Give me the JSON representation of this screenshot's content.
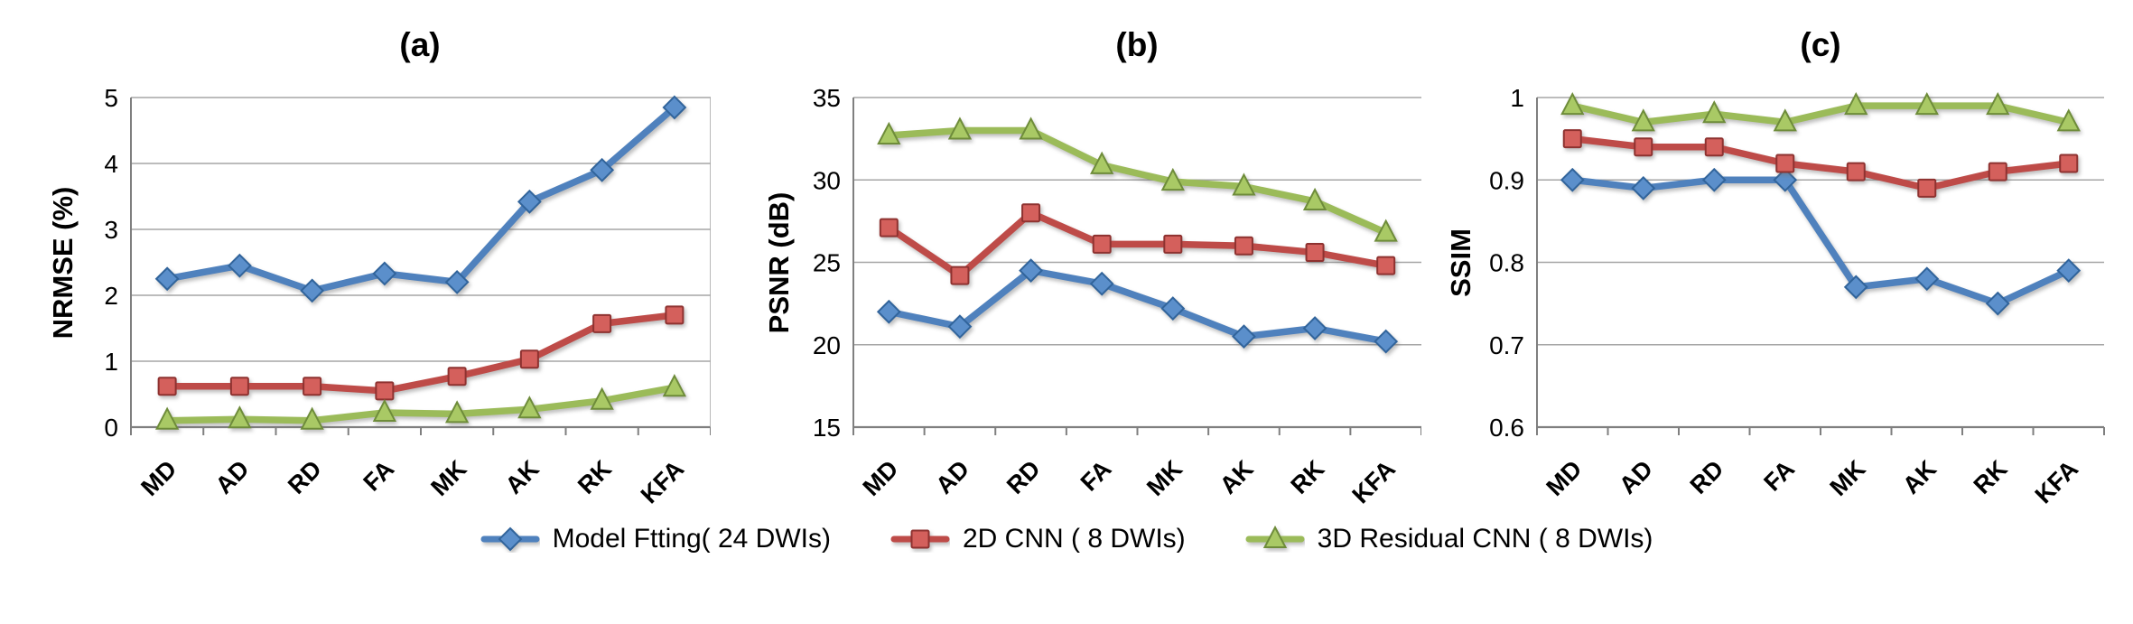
{
  "legend": {
    "items": [
      {
        "label": "Model Ftting( 24 DWIs)",
        "marker": "diamond"
      },
      {
        "label": "2D CNN ( 8 DWIs)",
        "marker": "square"
      },
      {
        "label": "3D Residual CNN ( 8 DWIs)",
        "marker": "triangle"
      }
    ]
  },
  "chart_data": [
    {
      "type": "line",
      "title": "(a)",
      "ylabel": "NRMSE (%)",
      "xlabel": "",
      "categories": [
        "MD",
        "AD",
        "RD",
        "FA",
        "MK",
        "AK",
        "RK",
        "KFA"
      ],
      "ylim": [
        0,
        5
      ],
      "yticks": [
        "0",
        "1",
        "2",
        "3",
        "4",
        "5"
      ],
      "grid": true,
      "legend_position": "bottom",
      "series": [
        {
          "name": "Model Ftting( 24 DWIs)",
          "marker": "diamond",
          "line_color": "#4F81BD",
          "marker_fill": "#5B8FCB",
          "marker_stroke": "#31649B",
          "values": [
            2.25,
            2.45,
            2.07,
            2.33,
            2.2,
            3.42,
            3.9,
            4.85
          ]
        },
        {
          "name": "2D CNN ( 8 DWIs)",
          "marker": "square",
          "line_color": "#BE4B48",
          "marker_fill": "#D4605C",
          "marker_stroke": "#8E3230",
          "values": [
            0.62,
            0.62,
            0.62,
            0.55,
            0.77,
            1.03,
            1.57,
            1.7
          ]
        },
        {
          "name": "3D Residual CNN ( 8 DWIs)",
          "marker": "triangle",
          "line_color": "#9BBB59",
          "marker_fill": "#A9C965",
          "marker_stroke": "#6E8C3A",
          "values": [
            0.1,
            0.12,
            0.1,
            0.22,
            0.2,
            0.27,
            0.4,
            0.6
          ]
        }
      ]
    },
    {
      "type": "line",
      "title": "(b)",
      "ylabel": "PSNR (dB)",
      "xlabel": "",
      "categories": [
        "MD",
        "AD",
        "RD",
        "FA",
        "MK",
        "AK",
        "RK",
        "KFA"
      ],
      "ylim": [
        15,
        35
      ],
      "yticks": [
        "15",
        "20",
        "25",
        "30",
        "35"
      ],
      "grid": true,
      "legend_position": "bottom",
      "series": [
        {
          "name": "Model Ftting( 24 DWIs)",
          "marker": "diamond",
          "line_color": "#4F81BD",
          "marker_fill": "#5B8FCB",
          "marker_stroke": "#31649B",
          "values": [
            22.0,
            21.1,
            24.5,
            23.7,
            22.2,
            20.5,
            21.0,
            20.2
          ]
        },
        {
          "name": "2D CNN ( 8 DWIs)",
          "marker": "square",
          "line_color": "#BE4B48",
          "marker_fill": "#D4605C",
          "marker_stroke": "#8E3230",
          "values": [
            27.1,
            24.2,
            28.0,
            26.1,
            26.1,
            26.0,
            25.6,
            24.8
          ]
        },
        {
          "name": "3D Residual CNN ( 8 DWIs)",
          "marker": "triangle",
          "line_color": "#9BBB59",
          "marker_fill": "#A9C965",
          "marker_stroke": "#6E8C3A",
          "values": [
            32.7,
            33.0,
            33.0,
            30.9,
            29.9,
            29.6,
            28.7,
            26.8
          ]
        }
      ]
    },
    {
      "type": "line",
      "title": "(c)",
      "ylabel": "SSIM",
      "xlabel": "",
      "categories": [
        "MD",
        "AD",
        "RD",
        "FA",
        "MK",
        "AK",
        "RK",
        "KFA"
      ],
      "ylim": [
        0.6,
        1.0
      ],
      "yticks": [
        "0.6",
        "0.7",
        "0.8",
        "0.9",
        "1"
      ],
      "grid": true,
      "legend_position": "bottom",
      "series": [
        {
          "name": "Model Ftting( 24 DWIs)",
          "marker": "diamond",
          "line_color": "#4F81BD",
          "marker_fill": "#5B8FCB",
          "marker_stroke": "#31649B",
          "values": [
            0.9,
            0.89,
            0.9,
            0.9,
            0.77,
            0.78,
            0.75,
            0.79
          ]
        },
        {
          "name": "2D CNN ( 8 DWIs)",
          "marker": "square",
          "line_color": "#BE4B48",
          "marker_fill": "#D4605C",
          "marker_stroke": "#8E3230",
          "values": [
            0.95,
            0.94,
            0.94,
            0.92,
            0.91,
            0.89,
            0.91,
            0.92
          ]
        },
        {
          "name": "3D Residual CNN ( 8 DWIs)",
          "marker": "triangle",
          "line_color": "#9BBB59",
          "marker_fill": "#A9C965",
          "marker_stroke": "#6E8C3A",
          "values": [
            0.99,
            0.97,
            0.98,
            0.97,
            0.99,
            0.99,
            0.99,
            0.97
          ]
        }
      ]
    }
  ]
}
